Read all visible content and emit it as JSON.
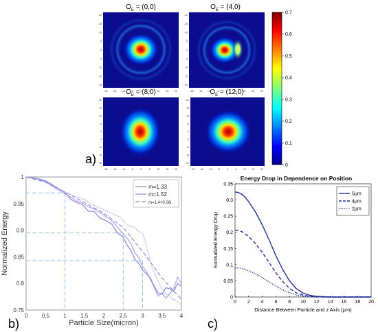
{
  "figure": {
    "panel_labels": {
      "a": "a)",
      "b": "b)",
      "c": "c)"
    }
  },
  "colors": {
    "panel_b_line": "#8f8fdc",
    "panel_b_guides": "#9fc0e6",
    "panel_c_line": "#1f2f99",
    "heatmap_background": "#0c0c8f"
  },
  "chart_data": [
    {
      "id": "a",
      "type": "heatmap",
      "subplots": [
        {
          "title": "O",
          "subscript": "E",
          "coords": " = (0,0)",
          "pattern": "central spot with faint concentric rings"
        },
        {
          "title": "O",
          "subscript": "E",
          "coords": " = (4,0)",
          "pattern": "spot with bright crescent on right side"
        },
        {
          "title": "O",
          "subscript": "E",
          "coords": " = (8,0)",
          "pattern": "bright elongated spot"
        },
        {
          "title": "O",
          "subscript": "E",
          "coords": " = (12,0)",
          "pattern": "broad bright spot"
        }
      ],
      "axis_ticks": [
        "-20",
        "-15",
        "-10",
        "-5",
        "0",
        "5",
        "10",
        "15",
        "20"
      ],
      "colorbar": {
        "min": 0,
        "max": 0.7,
        "ticks": [
          "0",
          "0.1",
          "0.2",
          "0.3",
          "0.4",
          "0.5",
          "0.6",
          "0.7"
        ],
        "colormap": "jet"
      }
    },
    {
      "id": "b",
      "type": "line",
      "xlabel": "Particle Size(micron)",
      "ylabel": "Normalized Energy",
      "xlim": [
        0,
        4
      ],
      "ylim": [
        0.75,
        1
      ],
      "xticks": [
        "0",
        "0.5",
        "1",
        "1.5",
        "2",
        "2.5",
        "3",
        "3.5",
        "4"
      ],
      "yticks": [
        "0.75",
        "0.8",
        "0.85",
        "0.9",
        "0.95",
        "1"
      ],
      "legend_position": "top-right",
      "series": [
        {
          "name": "m=1.33",
          "style": "solid",
          "x": [
            0,
            0.25,
            0.5,
            0.75,
            1,
            1.15,
            1.3,
            1.45,
            1.6,
            1.75,
            1.9,
            2.05,
            2.2,
            2.35,
            2.5,
            2.6,
            2.7,
            2.8,
            2.9,
            3,
            3.1,
            3.2,
            3.3,
            3.4,
            3.5,
            3.6,
            3.7,
            3.8,
            3.9,
            4
          ],
          "y": [
            1,
            0.998,
            0.993,
            0.982,
            0.971,
            0.958,
            0.952,
            0.948,
            0.936,
            0.935,
            0.923,
            0.918,
            0.912,
            0.895,
            0.887,
            0.872,
            0.862,
            0.845,
            0.838,
            0.825,
            0.818,
            0.81,
            0.795,
            0.782,
            0.78,
            0.792,
            0.79,
            0.785,
            0.8,
            0.795
          ]
        },
        {
          "name": "m=1.52",
          "style": "solid",
          "x": [
            0,
            0.25,
            0.5,
            0.75,
            1,
            1.15,
            1.3,
            1.45,
            1.6,
            1.75,
            1.9,
            2.05,
            2.2,
            2.35,
            2.5,
            2.6,
            2.7,
            2.8,
            2.9,
            3,
            3.1,
            3.2,
            3.3,
            3.4,
            3.5,
            3.6,
            3.7,
            3.8,
            3.9,
            4
          ],
          "y": [
            1,
            0.997,
            0.991,
            0.979,
            0.968,
            0.962,
            0.955,
            0.951,
            0.944,
            0.94,
            0.933,
            0.926,
            0.918,
            0.906,
            0.893,
            0.885,
            0.874,
            0.858,
            0.848,
            0.832,
            0.822,
            0.808,
            0.792,
            0.776,
            0.782,
            0.772,
            0.781,
            0.79,
            0.812,
            0.8
          ]
        },
        {
          "name": "m=1.4+0.06i",
          "style": "dashed",
          "x": [
            0,
            0.5,
            1,
            1.5,
            2,
            2.5,
            3,
            3.5,
            4
          ],
          "y": [
            1,
            0.99,
            0.972,
            0.952,
            0.932,
            0.905,
            0.86,
            0.81,
            0.77
          ]
        },
        {
          "name": "",
          "style": "dotted",
          "x": [
            0,
            0.3,
            0.6,
            0.9,
            1.2,
            1.5,
            1.8,
            2.1,
            2.4,
            2.6,
            2.8,
            2.9,
            3,
            3.1,
            3.2,
            3.3,
            3.4,
            3.5,
            3.6,
            3.8,
            4
          ],
          "y": [
            1,
            0.996,
            0.988,
            0.975,
            0.965,
            0.958,
            0.945,
            0.935,
            0.925,
            0.91,
            0.905,
            0.897,
            0.895,
            0.87,
            0.84,
            0.82,
            0.805,
            0.79,
            0.78,
            0.77,
            0.76
          ]
        }
      ],
      "guides": [
        {
          "x": 1,
          "y": 0.97
        },
        {
          "x": 2.5,
          "y": 0.895
        },
        {
          "x": 3,
          "y": 0.843
        }
      ]
    },
    {
      "id": "c",
      "type": "line",
      "title": "Energy Drop in Dependence on Position",
      "xlabel": "Distance Between Particle and z Axis (μm)",
      "ylabel": "Normalized Energy Drop",
      "xlim": [
        0,
        20
      ],
      "ylim": [
        0,
        0.35
      ],
      "xticks": [
        "0",
        "2",
        "4",
        "6",
        "8",
        "10",
        "12",
        "14",
        "16",
        "18",
        "20"
      ],
      "yticks": [
        "0",
        "0.05",
        "0.1",
        "0.15",
        "0.2",
        "0.25",
        "0.3",
        "0.35"
      ],
      "legend_position": "top-right",
      "series": [
        {
          "name": "5μm",
          "style": "solid",
          "x": [
            0,
            0.5,
            1,
            1.5,
            2,
            3,
            4,
            5,
            6,
            7,
            8,
            9,
            10,
            11,
            12,
            13,
            14,
            15,
            16,
            17,
            18,
            19,
            20
          ],
          "y": [
            0.325,
            0.323,
            0.318,
            0.308,
            0.295,
            0.263,
            0.223,
            0.177,
            0.128,
            0.085,
            0.05,
            0.026,
            0.012,
            0.005,
            0.002,
            0.001,
            0,
            0,
            0,
            0,
            0,
            0,
            0
          ]
        },
        {
          "name": "4μm",
          "style": "dashed",
          "x": [
            0,
            0.5,
            1,
            1.5,
            2,
            3,
            4,
            5,
            6,
            7,
            8,
            9,
            10,
            11,
            12,
            13,
            14,
            15,
            16,
            17,
            18,
            19,
            20
          ],
          "y": [
            0.207,
            0.206,
            0.202,
            0.195,
            0.187,
            0.165,
            0.138,
            0.107,
            0.075,
            0.048,
            0.027,
            0.013,
            0.006,
            0.002,
            0.001,
            0,
            0,
            0,
            0,
            0,
            0,
            0,
            0
          ]
        },
        {
          "name": "2μm",
          "style": "dotted",
          "x": [
            0,
            0.5,
            1,
            1.5,
            2,
            3,
            4,
            5,
            6,
            7,
            8,
            9,
            10,
            11,
            12,
            13,
            14,
            15,
            16,
            17,
            18,
            19,
            20
          ],
          "y": [
            0.09,
            0.09,
            0.088,
            0.085,
            0.081,
            0.072,
            0.06,
            0.047,
            0.034,
            0.022,
            0.013,
            0.006,
            0.003,
            0.001,
            0,
            0,
            0,
            0,
            0,
            0,
            0,
            0,
            0
          ]
        }
      ]
    }
  ]
}
